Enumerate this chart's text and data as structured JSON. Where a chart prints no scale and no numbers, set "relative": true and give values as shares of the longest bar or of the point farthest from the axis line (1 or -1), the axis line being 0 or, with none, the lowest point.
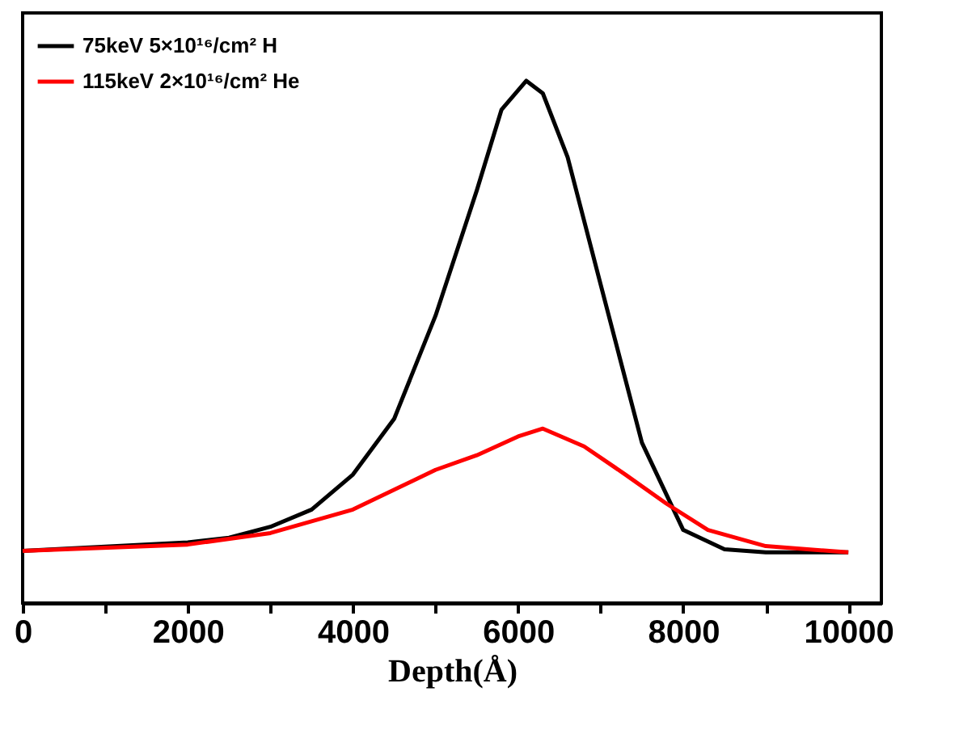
{
  "chart_data": {
    "type": "line",
    "relative": true,
    "xlabel": "Depth(Å)",
    "xlim": [
      0,
      10400
    ],
    "xticks": [
      0,
      {
        "value": 1000,
        "label": null
      },
      2000,
      {
        "value": 3000,
        "label": null
      },
      4000,
      {
        "value": 5000,
        "label": null
      },
      6000,
      {
        "value": 7000,
        "label": null
      },
      8000,
      {
        "value": 9000,
        "label": null
      },
      10000
    ],
    "legend": "top left",
    "grid": false,
    "marker": "none",
    "line_style": "solid",
    "series": [
      {
        "name": "75keV 5×10¹⁶/cm² H",
        "color": "#000000",
        "x": [
          0,
          2000,
          2500,
          3000,
          3500,
          4000,
          4500,
          5000,
          5500,
          5800,
          6100,
          6300,
          6600,
          7000,
          7500,
          8000,
          8500,
          9000,
          10000
        ],
        "values": [
          0.1,
          0.116,
          0.125,
          0.146,
          0.179,
          0.246,
          0.353,
          0.55,
          0.79,
          0.945,
          1,
          0.976,
          0.854,
          0.61,
          0.307,
          0.14,
          0.103,
          0.097,
          0.097
        ]
      },
      {
        "name": "115keV 2×10¹⁶/cm² He",
        "color": "#ff0000",
        "x": [
          0,
          2000,
          3000,
          4000,
          5000,
          5500,
          6000,
          6300,
          6800,
          7300,
          7800,
          8300,
          9000,
          10000
        ],
        "values": [
          0.1,
          0.112,
          0.134,
          0.179,
          0.255,
          0.283,
          0.319,
          0.334,
          0.3,
          0.246,
          0.19,
          0.14,
          0.109,
          0.097
        ]
      }
    ]
  }
}
